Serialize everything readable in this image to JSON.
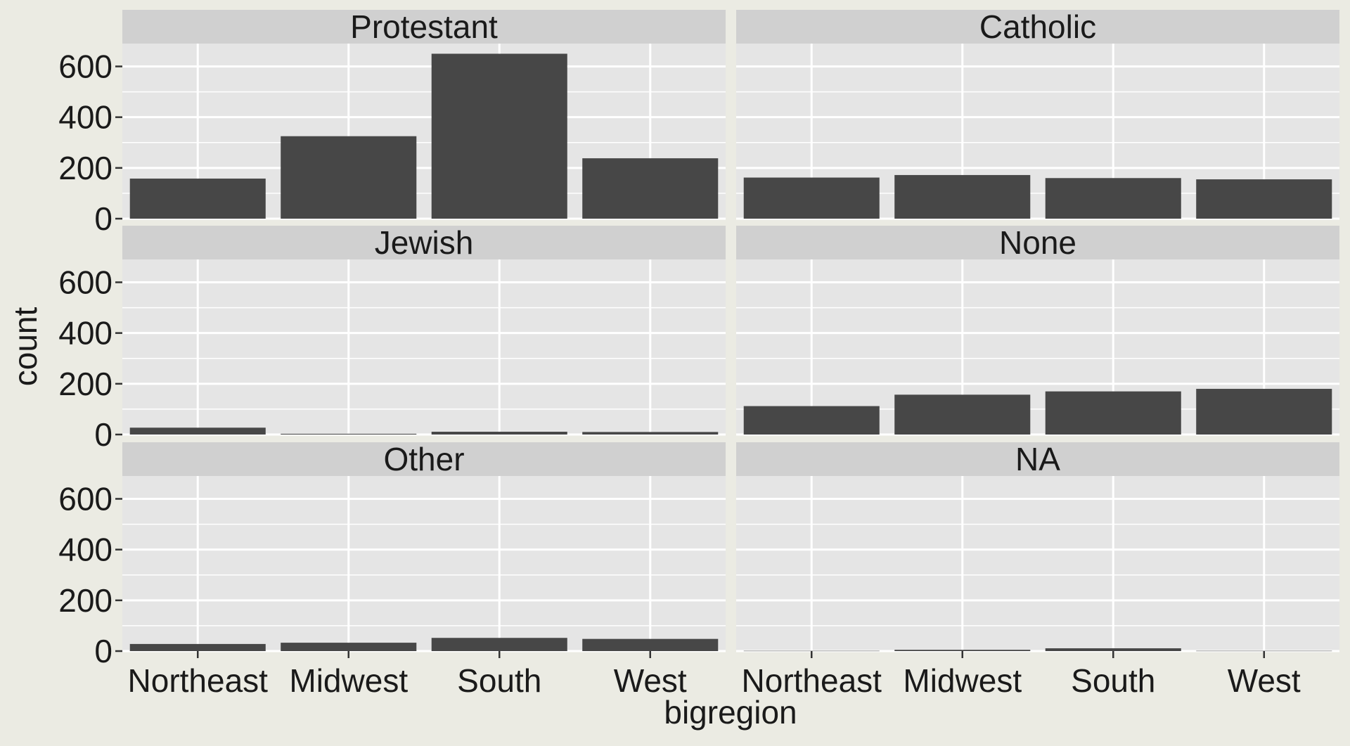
{
  "chart_data": {
    "type": "bar",
    "facet_layout": "3 rows x 2 columns",
    "xlabel": "bigregion",
    "ylabel": "count",
    "ylim": [
      0,
      690
    ],
    "y_ticks": [
      0,
      200,
      400,
      600
    ],
    "grid": true,
    "categories": [
      "Northeast",
      "Midwest",
      "South",
      "West"
    ],
    "facets": [
      {
        "name": "Protestant",
        "values": [
          158,
          325,
          650,
          238
        ]
      },
      {
        "name": "Catholic",
        "values": [
          162,
          172,
          160,
          155
        ]
      },
      {
        "name": "Jewish",
        "values": [
          27,
          3,
          11,
          10
        ]
      },
      {
        "name": "None",
        "values": [
          112,
          157,
          170,
          180
        ]
      },
      {
        "name": "Other",
        "values": [
          28,
          33,
          52,
          48
        ]
      },
      {
        "name": "NA",
        "values": [
          1,
          5,
          11,
          1
        ]
      }
    ]
  },
  "colors": {
    "background": "#ebebe3",
    "panel": "#e5e5e5",
    "strip": "#d0d0d0",
    "bar": "#474747",
    "grid": "#ffffff"
  }
}
